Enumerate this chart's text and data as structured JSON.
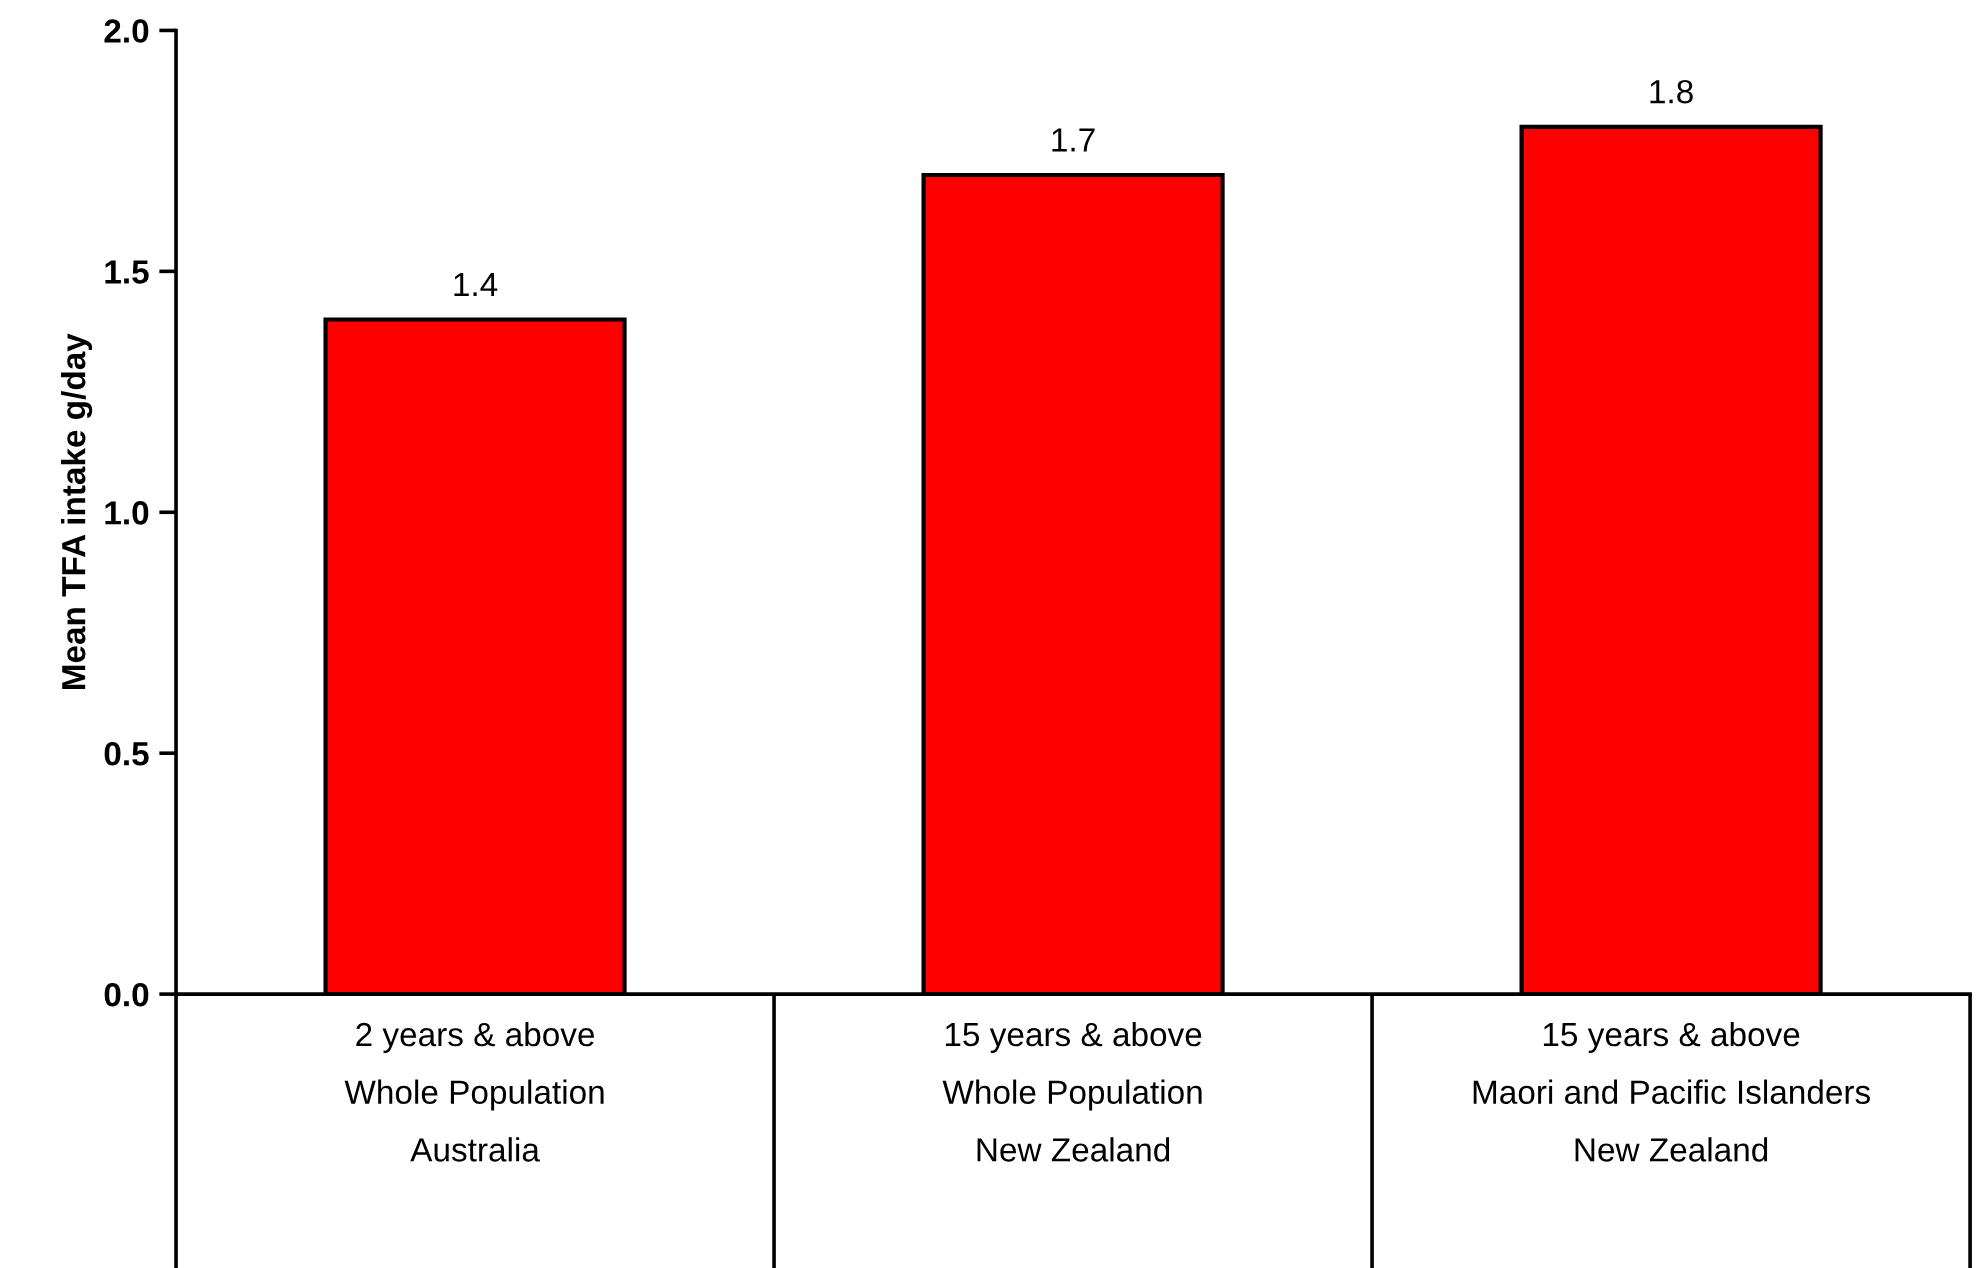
{
  "chart_data": {
    "type": "bar",
    "ylabel": "Mean TFA intake g/day",
    "categories": [
      "2 years & above\nWhole Population\nAustralia",
      "15 years & above\nWhole Population\nNew Zealand",
      "15 years & above\nMaori and Pacific Islanders\nNew Zealand"
    ],
    "values": [
      1.4,
      1.7,
      1.8
    ],
    "color": "#ff0000",
    "data_labels": true,
    "grid": false,
    "legend": false,
    "ylim": [
      0,
      2.0
    ],
    "yticks": [
      {
        "value": 0,
        "label": "0.0"
      },
      {
        "value": 0.5,
        "label": "0.5"
      },
      {
        "value": 1.0,
        "label": "1.0"
      },
      {
        "value": 1.5,
        "label": "1.5"
      },
      {
        "value": 2.0,
        "label": "2.0"
      }
    ]
  }
}
